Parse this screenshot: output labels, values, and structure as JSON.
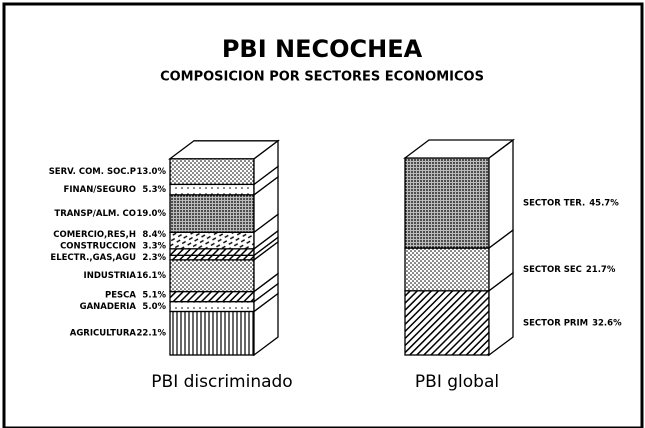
{
  "title": "PBI NECOCHEA",
  "subtitle": "COMPOSICION POR SECTORES ECONOMICOS",
  "chart_data": [
    {
      "type": "stacked_bar",
      "xlabel": "PBI discriminado",
      "ylim": [
        0,
        100
      ],
      "label_side": "left",
      "categories": [
        "AGRICULTURA",
        "GANADERIA",
        "PESCA",
        "INDUSTRIA",
        "ELECTR.,GAS,AGU",
        "CONSTRUCCION",
        "COMERCIO,RES,H",
        "TRANSP/ALM. CO",
        "FINAN/SEGURO",
        "SERV. COM. SOC.P"
      ],
      "values": [
        22.1,
        5.0,
        5.1,
        16.1,
        2.3,
        3.3,
        8.4,
        19.0,
        5.3,
        13.0
      ],
      "value_labels": [
        "22.1%",
        "5.0%",
        "5.1%",
        "16.1%",
        "2.3%",
        "3.3%",
        "8.4%",
        "19.0%",
        "5.3%",
        "13.0%"
      ],
      "patterns": [
        "vlines",
        "dots-sparse",
        "hatch",
        "dots",
        "hatch",
        "hatch",
        "crosshatch",
        "dots-dense",
        "dots-sparse",
        "dots"
      ]
    },
    {
      "type": "stacked_bar",
      "xlabel": "PBI global",
      "ylim": [
        0,
        100
      ],
      "label_side": "right",
      "categories": [
        "SECTOR PRIM",
        "SECTOR SEC",
        "SECTOR TER."
      ],
      "values": [
        32.6,
        21.7,
        45.7
      ],
      "value_labels": [
        "32.6%",
        "21.7%",
        "45.7%"
      ],
      "patterns": [
        "hatch",
        "dots",
        "dots-dense"
      ]
    }
  ]
}
